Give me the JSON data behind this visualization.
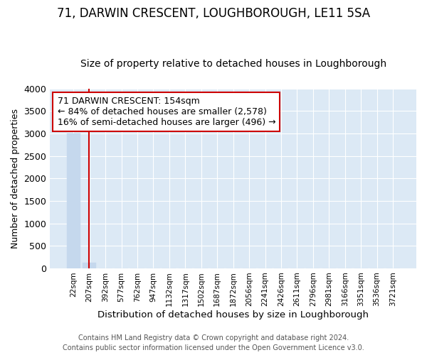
{
  "title": "71, DARWIN CRESCENT, LOUGHBOROUGH, LE11 5SA",
  "subtitle": "Size of property relative to detached houses in Loughborough",
  "xlabel": "Distribution of detached houses by size in Loughborough",
  "ylabel": "Number of detached properties",
  "bar_labels": [
    "22sqm",
    "207sqm",
    "392sqm",
    "577sqm",
    "762sqm",
    "947sqm",
    "1132sqm",
    "1317sqm",
    "1502sqm",
    "1687sqm",
    "1872sqm",
    "2056sqm",
    "2241sqm",
    "2426sqm",
    "2611sqm",
    "2796sqm",
    "2981sqm",
    "3166sqm",
    "3351sqm",
    "3536sqm",
    "3721sqm"
  ],
  "bar_values": [
    3000,
    120,
    0,
    0,
    0,
    0,
    0,
    0,
    0,
    0,
    0,
    0,
    0,
    0,
    0,
    0,
    0,
    0,
    0,
    0,
    0
  ],
  "bar_color": "#c5d8ed",
  "bar_edge_color": "#c5d8ed",
  "background_color": "#dce9f5",
  "grid_color": "#ffffff",
  "figure_bg": "#ffffff",
  "ylim": [
    0,
    4000
  ],
  "yticks": [
    0,
    500,
    1000,
    1500,
    2000,
    2500,
    3000,
    3500,
    4000
  ],
  "vline_x": 0.97,
  "vline_color": "#cc0000",
  "annotation_text": "71 DARWIN CRESCENT: 154sqm\n← 84% of detached houses are smaller (2,578)\n16% of semi-detached houses are larger (496) →",
  "annotation_box_color": "#cc0000",
  "footer_line1": "Contains HM Land Registry data © Crown copyright and database right 2024.",
  "footer_line2": "Contains public sector information licensed under the Open Government Licence v3.0.",
  "title_fontsize": 12,
  "subtitle_fontsize": 10,
  "ann_fontsize": 9
}
